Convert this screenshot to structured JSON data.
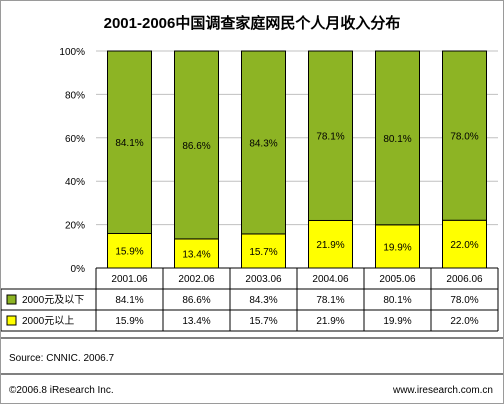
{
  "chart_data": {
    "type": "bar",
    "stacked": true,
    "title": "2001-2006中国调查家庭网民个人月收入分布",
    "categories": [
      "2001.06",
      "2002.06",
      "2003.06",
      "2004.06",
      "2005.06",
      "2006.06"
    ],
    "series": [
      {
        "name": "2000元及以下",
        "color": "#8db424",
        "values": [
          84.1,
          86.6,
          84.3,
          78.1,
          80.1,
          78.0
        ],
        "labels": [
          "84.1%",
          "86.6%",
          "84.3%",
          "78.1%",
          "80.1%",
          "78.0%"
        ]
      },
      {
        "name": "2000元以上",
        "color": "#ffff00",
        "values": [
          15.9,
          13.4,
          15.7,
          21.9,
          19.9,
          22.0
        ],
        "labels": [
          "15.9%",
          "13.4%",
          "15.7%",
          "21.9%",
          "19.9%",
          "22.0%"
        ]
      }
    ],
    "yticks": [
      "0%",
      "20%",
      "40%",
      "60%",
      "80%",
      "100%"
    ],
    "ylim": [
      0,
      100
    ],
    "legend": "data-table"
  },
  "footer": {
    "source": "Source: CNNIC. 2006.7",
    "copyright": "©2006.8 iResearch Inc.",
    "website": "www.iresearch.com.cn"
  }
}
